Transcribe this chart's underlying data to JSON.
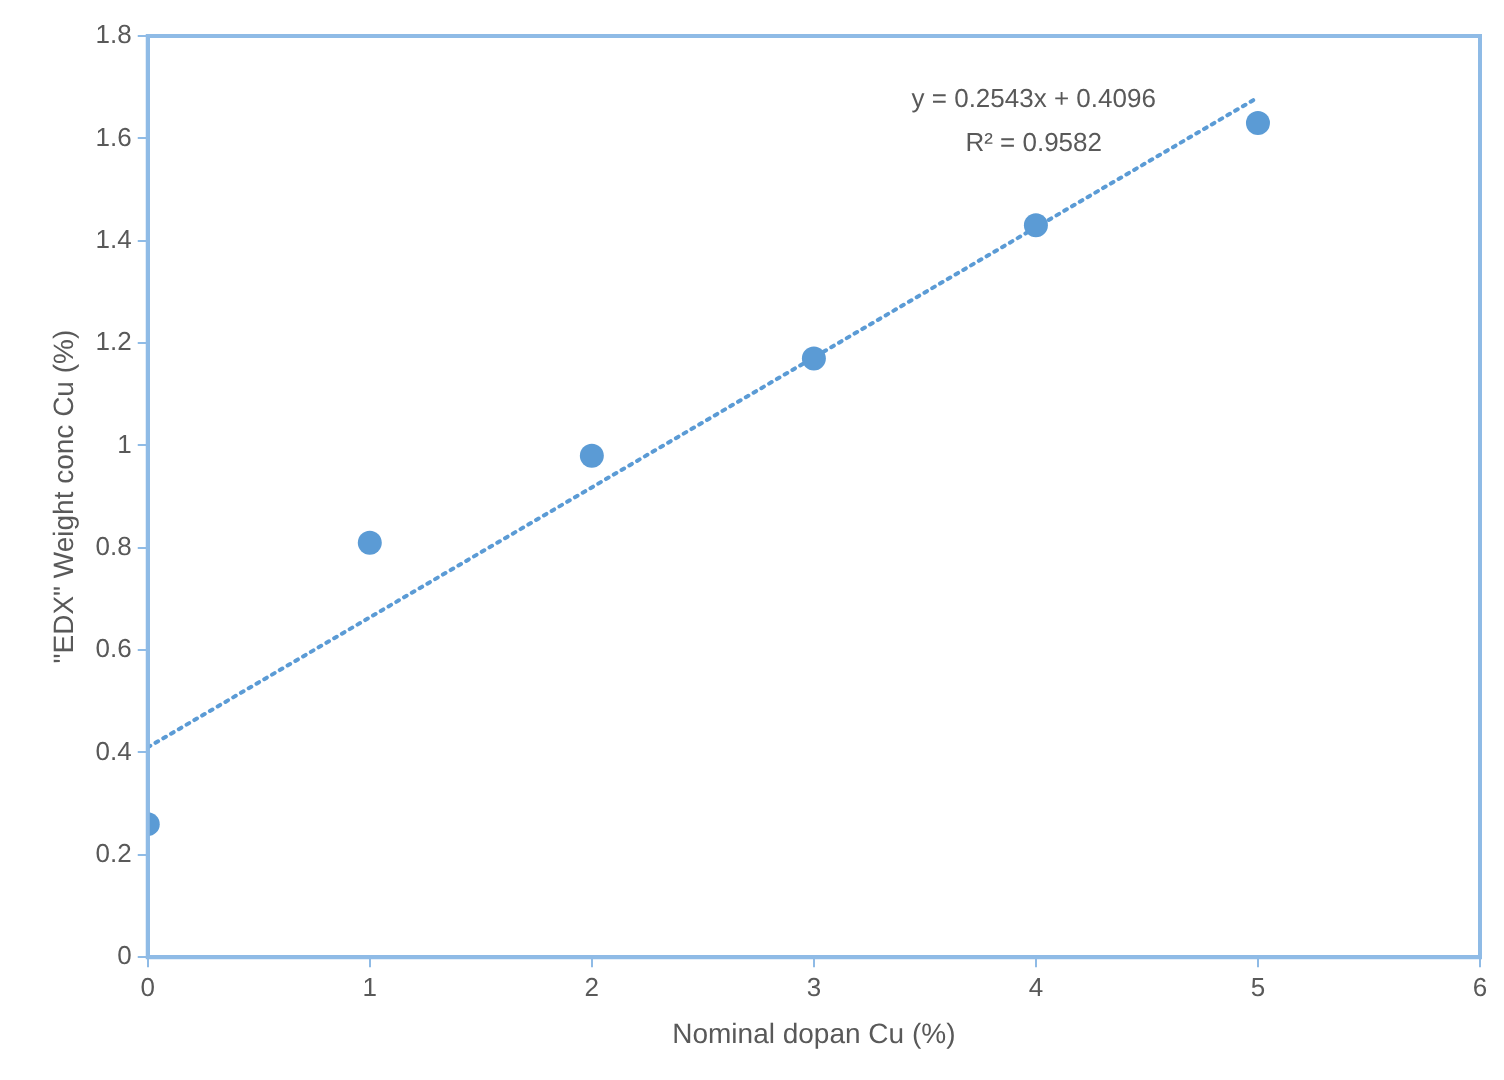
{
  "chart_data": {
    "type": "scatter",
    "xlabel": "Nominal dopan Cu (%)",
    "ylabel": "\"EDX\" Weight conc Cu (%)",
    "x": [
      0,
      1,
      2,
      3,
      4,
      5
    ],
    "series": [
      {
        "type": "scatter",
        "color": "#5b9bd5",
        "values": [
          0.26,
          0.81,
          0.98,
          1.17,
          1.43,
          1.63
        ]
      },
      {
        "type": "line",
        "color": "#5b9bd5",
        "x": [
          0,
          5
        ],
        "values": [
          0.41,
          1.68
        ],
        "line_style": "dotted",
        "marker": "none"
      }
    ],
    "annotations": [
      "y = 0.2543x + 0.4096",
      "R² = 0.9582"
    ],
    "marker": "circle",
    "grid": false,
    "legend": false,
    "xlim": [
      0,
      6
    ],
    "xticks": [
      0,
      1,
      2,
      3,
      4,
      5,
      6
    ],
    "ylim": [
      0,
      1.8
    ],
    "yticks": [
      0,
      0.2,
      0.4,
      0.6,
      0.8,
      1,
      1.2,
      1.4,
      1.6,
      1.8
    ]
  }
}
